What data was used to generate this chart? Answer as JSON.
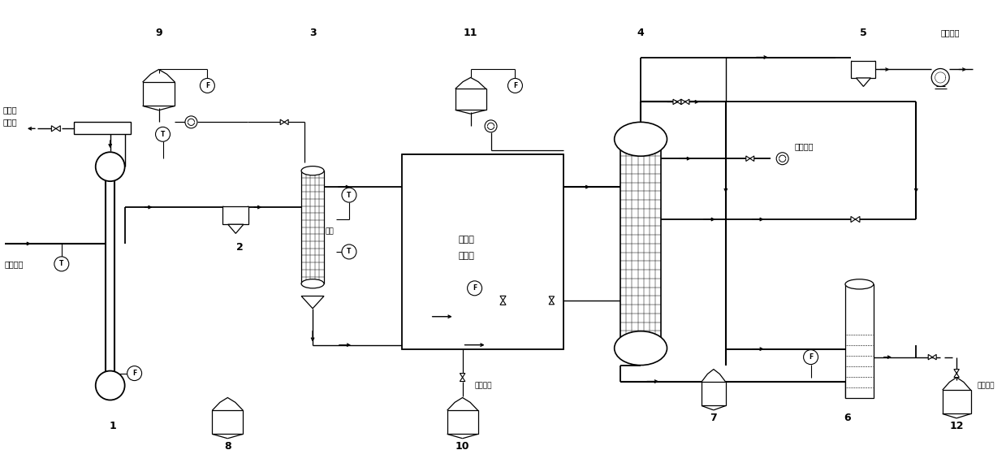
{
  "bg_color": "#ffffff",
  "line_color": "#000000",
  "figsize": [
    12.39,
    5.7
  ],
  "labels": {
    "high_temp_flue": "高温烟气",
    "steam_user1": "水蒸汽",
    "steam_user2": "供用户",
    "flue_exhaust": "烟气排放",
    "gas_exhaust": "气体排放",
    "recycle1": "循环使用",
    "recycle2": "循环使用",
    "hot_clean_air1": "高温洁",
    "hot_clean_air2": "净空气",
    "feed_water": "疏水"
  }
}
